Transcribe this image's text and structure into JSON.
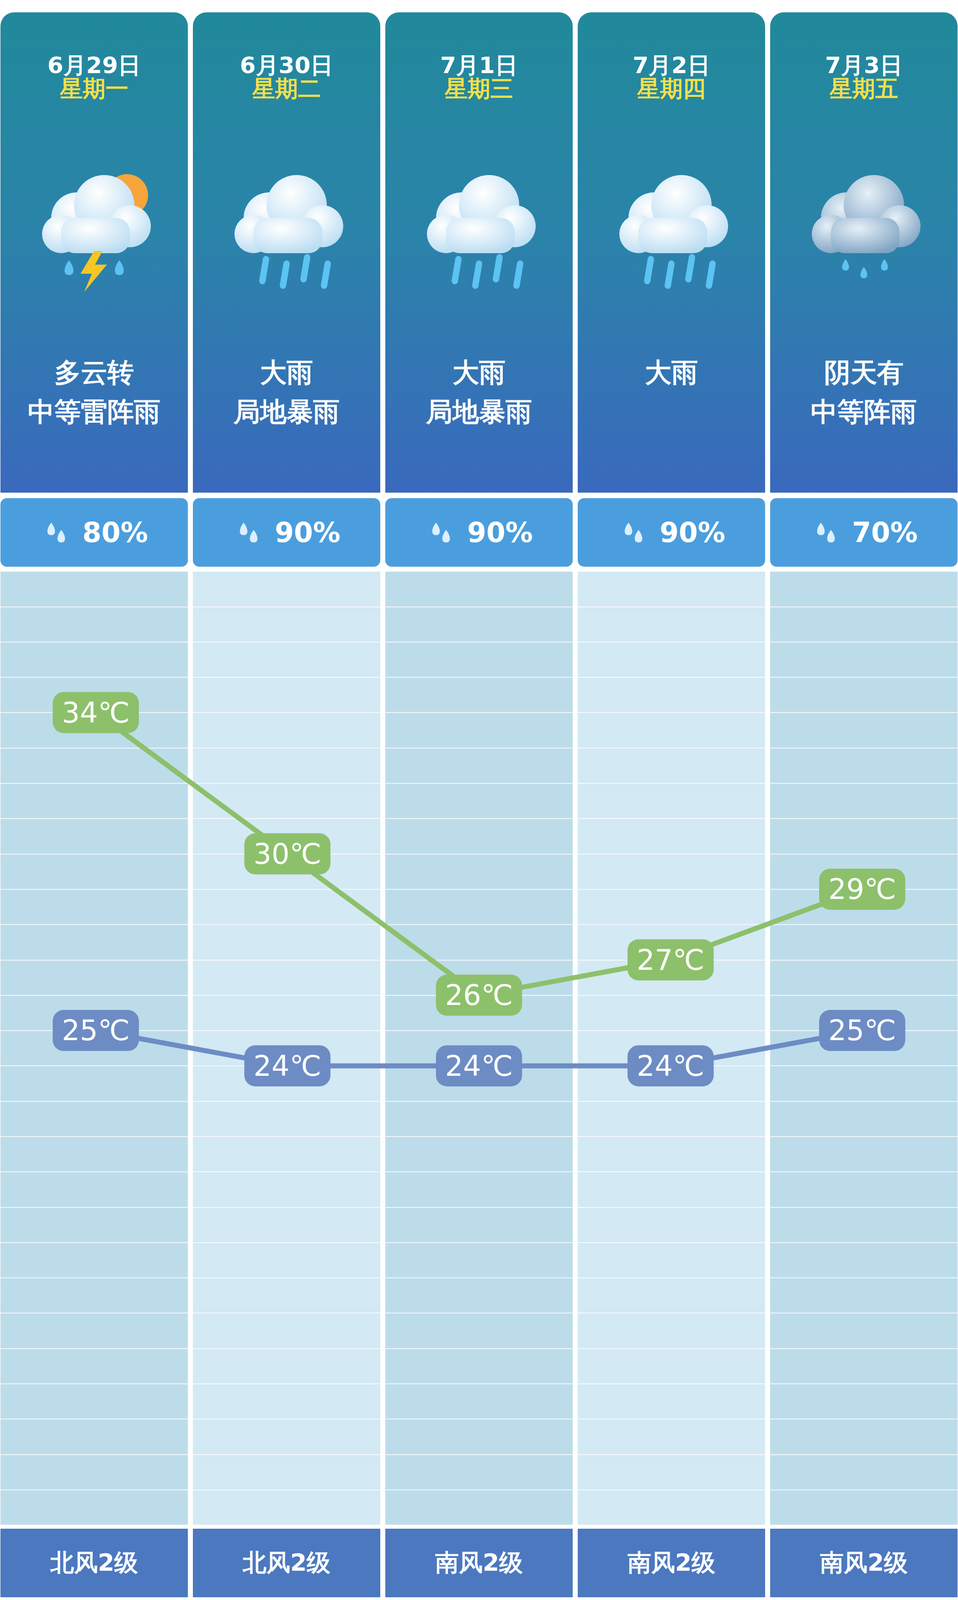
{
  "chart_data": {
    "type": "line",
    "categories": [
      "6月29日",
      "6月30日",
      "7月1日",
      "7月2日",
      "7月3日"
    ],
    "weekdays": [
      "星期一",
      "星期二",
      "星期三",
      "星期四",
      "星期五"
    ],
    "conditions": [
      [
        "多云转",
        "中等雷阵雨"
      ],
      [
        "大雨",
        "局地暴雨"
      ],
      [
        "大雨",
        "局地暴雨"
      ],
      [
        "大雨"
      ],
      [
        "阴天有",
        "中等阵雨"
      ]
    ],
    "precipitation": [
      80,
      90,
      90,
      90,
      70
    ],
    "precipitation_labels": [
      "80%",
      "90%",
      "90%",
      "90%",
      "70%"
    ],
    "winds": [
      "北风2级",
      "北风2级",
      "南风2级",
      "南风2级",
      "南风2级"
    ],
    "series": [
      {
        "color": "#8dc06b",
        "values": [
          34,
          30,
          26,
          27,
          29
        ],
        "value_labels": [
          "34℃",
          "30℃",
          "26℃",
          "27℃",
          "29℃"
        ]
      },
      {
        "color": "#6d8cc4",
        "values": [
          25,
          24,
          24,
          24,
          25
        ],
        "value_labels": [
          "25℃",
          "24℃",
          "24℃",
          "24℃",
          "25℃"
        ]
      }
    ],
    "ylim": [
      11,
      38
    ],
    "yticks": [
      11,
      12,
      13,
      14,
      15,
      16,
      17,
      18,
      19,
      20,
      21,
      22,
      23,
      24,
      25,
      26,
      27,
      28,
      29,
      30,
      31,
      32,
      33,
      34,
      35,
      36,
      37,
      38
    ],
    "grid": true,
    "data_labels": true,
    "tick_labels": false
  }
}
